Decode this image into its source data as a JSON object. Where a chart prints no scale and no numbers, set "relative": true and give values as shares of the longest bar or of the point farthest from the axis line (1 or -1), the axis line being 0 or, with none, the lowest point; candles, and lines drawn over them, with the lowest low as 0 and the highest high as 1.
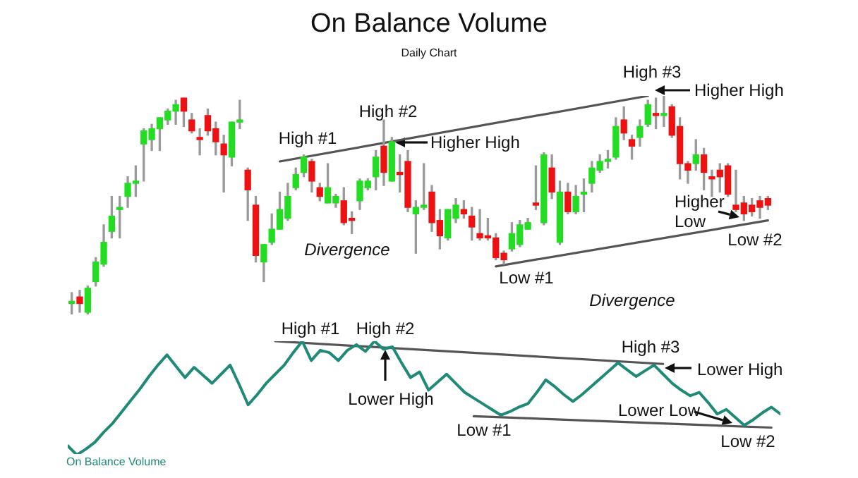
{
  "chart_data": [
    {
      "type": "candlestick",
      "title": "On Balance Volume",
      "subtitle": "Daily Chart",
      "relative": true,
      "marker": "none",
      "categories": [
        null,
        null,
        null,
        null,
        null,
        null,
        null,
        null,
        null,
        null,
        null,
        null,
        null,
        null,
        null,
        null,
        null,
        null,
        null,
        null,
        null,
        null,
        null,
        null,
        null,
        null,
        null,
        null,
        null,
        null,
        null,
        null,
        null,
        null,
        null,
        null,
        null,
        null,
        null,
        null,
        null,
        null,
        null,
        null,
        null,
        null,
        null,
        null,
        null,
        null,
        null,
        null,
        null,
        null,
        null,
        null,
        null,
        null,
        null,
        null,
        null,
        null,
        null,
        null,
        null,
        null,
        null,
        null,
        null,
        null,
        null,
        null,
        null,
        null,
        null,
        null,
        null,
        null,
        null,
        null,
        null,
        null,
        null,
        null,
        null,
        null,
        null,
        null
      ],
      "ohlc": [
        [
          0.05,
          0.1,
          0.0,
          0.06
        ],
        [
          0.08,
          0.11,
          0.01,
          0.05
        ],
        [
          0.01,
          0.13,
          0.0,
          0.12
        ],
        [
          0.15,
          0.26,
          0.13,
          0.24
        ],
        [
          0.23,
          0.41,
          0.22,
          0.33
        ],
        [
          0.38,
          0.54,
          0.35,
          0.45
        ],
        [
          0.48,
          0.54,
          0.35,
          0.49
        ],
        [
          0.54,
          0.63,
          0.49,
          0.6
        ],
        [
          0.6,
          0.68,
          0.54,
          0.61
        ],
        [
          0.78,
          0.85,
          0.61,
          0.84
        ],
        [
          0.8,
          0.87,
          0.75,
          0.85
        ],
        [
          0.85,
          0.9,
          0.75,
          0.9
        ],
        [
          0.89,
          0.94,
          0.87,
          0.93
        ],
        [
          0.93,
          0.98,
          0.87,
          0.96
        ],
        [
          0.99,
          0.99,
          0.86,
          0.93
        ],
        [
          0.89,
          0.92,
          0.83,
          0.84
        ],
        [
          0.81,
          0.85,
          0.73,
          0.8
        ],
        [
          0.91,
          0.94,
          0.82,
          0.84
        ],
        [
          0.85,
          0.88,
          0.73,
          0.79
        ],
        [
          0.78,
          0.82,
          0.56,
          0.73
        ],
        [
          0.72,
          0.88,
          0.68,
          0.88
        ],
        [
          0.88,
          0.98,
          0.85,
          0.89
        ],
        [
          0.66,
          0.67,
          0.43,
          0.57
        ],
        [
          0.5,
          0.54,
          0.24,
          0.27
        ],
        [
          0.24,
          0.32,
          0.15,
          0.32
        ],
        [
          0.33,
          0.46,
          0.32,
          0.39
        ],
        [
          0.39,
          0.56,
          0.39,
          0.48
        ],
        [
          0.44,
          0.6,
          0.43,
          0.54
        ],
        [
          0.58,
          0.67,
          0.57,
          0.64
        ],
        [
          0.65,
          0.73,
          0.63,
          0.72
        ],
        [
          0.7,
          0.71,
          0.56,
          0.61
        ],
        [
          0.58,
          0.6,
          0.52,
          0.54
        ],
        [
          0.51,
          0.69,
          0.51,
          0.58
        ],
        [
          0.51,
          0.55,
          0.49,
          0.54
        ],
        [
          0.52,
          0.58,
          0.41,
          0.42
        ],
        [
          0.44,
          0.47,
          0.37,
          0.43
        ],
        [
          0.52,
          0.62,
          0.48,
          0.61
        ],
        [
          0.58,
          0.62,
          0.57,
          0.61
        ],
        [
          0.63,
          0.75,
          0.57,
          0.72
        ],
        [
          0.77,
          0.89,
          0.59,
          0.65
        ],
        [
          0.61,
          0.81,
          0.61,
          0.79
        ],
        [
          0.65,
          0.73,
          0.56,
          0.64
        ],
        [
          0.7,
          0.75,
          0.47,
          0.49
        ],
        [
          0.46,
          0.52,
          0.28,
          0.49
        ],
        [
          0.49,
          0.69,
          0.48,
          0.5
        ],
        [
          0.56,
          0.59,
          0.38,
          0.42
        ],
        [
          0.43,
          0.48,
          0.3,
          0.36
        ],
        [
          0.35,
          0.48,
          0.34,
          0.48
        ],
        [
          0.44,
          0.53,
          0.42,
          0.5
        ],
        [
          0.48,
          0.52,
          0.44,
          0.46
        ],
        [
          0.45,
          0.49,
          0.34,
          0.4
        ],
        [
          0.37,
          0.48,
          0.34,
          0.35
        ],
        [
          0.36,
          0.44,
          0.34,
          0.35
        ],
        [
          0.35,
          0.37,
          0.25,
          0.26
        ],
        [
          0.28,
          0.29,
          0.23,
          0.25
        ],
        [
          0.3,
          0.42,
          0.29,
          0.37
        ],
        [
          0.32,
          0.43,
          0.31,
          0.41
        ],
        [
          0.39,
          0.44,
          0.39,
          0.42
        ],
        [
          0.51,
          0.68,
          0.48,
          0.5
        ],
        [
          0.42,
          0.74,
          0.41,
          0.73
        ],
        [
          0.67,
          0.73,
          0.53,
          0.56
        ],
        [
          0.33,
          0.61,
          0.32,
          0.56
        ],
        [
          0.56,
          0.6,
          0.46,
          0.47
        ],
        [
          0.47,
          0.59,
          0.46,
          0.54
        ],
        [
          0.55,
          0.62,
          0.47,
          0.56
        ],
        [
          0.6,
          0.7,
          0.56,
          0.67
        ],
        [
          0.66,
          0.73,
          0.65,
          0.7
        ],
        [
          0.7,
          0.75,
          0.67,
          0.71
        ],
        [
          0.72,
          0.9,
          0.71,
          0.86
        ],
        [
          0.89,
          0.95,
          0.8,
          0.83
        ],
        [
          0.8,
          0.82,
          0.71,
          0.77
        ],
        [
          0.81,
          0.89,
          0.77,
          0.86
        ],
        [
          0.87,
          0.98,
          0.86,
          0.96
        ],
        [
          0.92,
          0.99,
          0.85,
          0.91
        ],
        [
          0.91,
          1.0,
          0.86,
          0.92
        ],
        [
          0.95,
          0.96,
          0.81,
          0.82
        ],
        [
          0.86,
          0.9,
          0.62,
          0.69
        ],
        [
          0.69,
          0.7,
          0.6,
          0.66
        ],
        [
          0.69,
          0.8,
          0.66,
          0.73
        ],
        [
          0.73,
          0.76,
          0.57,
          0.65
        ],
        [
          0.63,
          0.66,
          0.54,
          0.62
        ],
        [
          0.66,
          0.69,
          0.56,
          0.63
        ],
        [
          0.68,
          0.69,
          0.54,
          0.55
        ],
        [
          0.5,
          0.66,
          0.47,
          0.48
        ],
        [
          0.51,
          0.54,
          0.43,
          0.46
        ],
        [
          0.5,
          0.53,
          0.45,
          0.47
        ],
        [
          0.52,
          0.54,
          0.44,
          0.49
        ],
        [
          0.53,
          0.54,
          0.48,
          0.5
        ]
      ],
      "colors": [
        "#22dd22",
        "#ee1111",
        "#22dd22",
        "#22dd22",
        "#22dd22",
        "#22dd22",
        "#22dd22",
        "#22dd22",
        "#22dd22",
        "#22dd22",
        "#22dd22",
        "#22dd22",
        "#22dd22",
        "#22dd22",
        "#ee1111",
        "#ee1111",
        "#ee1111",
        "#ee1111",
        "#ee1111",
        "#ee1111",
        "#22dd22",
        "#22dd22",
        "#ee1111",
        "#ee1111",
        "#22dd22",
        "#22dd22",
        "#22dd22",
        "#22dd22",
        "#22dd22",
        "#22dd22",
        "#ee1111",
        "#ee1111",
        "#22dd22",
        "#22dd22",
        "#ee1111",
        "#ee1111",
        "#22dd22",
        "#22dd22",
        "#22dd22",
        "#ee1111",
        "#22dd22",
        "#ee1111",
        "#ee1111",
        "#22dd22",
        "#22dd22",
        "#ee1111",
        "#ee1111",
        "#22dd22",
        "#22dd22",
        "#ee1111",
        "#ee1111",
        "#ee1111",
        "#ee1111",
        "#ee1111",
        "#ee1111",
        "#22dd22",
        "#22dd22",
        "#22dd22",
        "#ee1111",
        "#22dd22",
        "#ee1111",
        "#22dd22",
        "#ee1111",
        "#22dd22",
        "#22dd22",
        "#22dd22",
        "#22dd22",
        "#22dd22",
        "#22dd22",
        "#ee1111",
        "#ee1111",
        "#22dd22",
        "#22dd22",
        "#ee1111",
        "#22dd22",
        "#ee1111",
        "#ee1111",
        "#ee1111",
        "#22dd22",
        "#ee1111",
        "#ee1111",
        "#ee1111",
        "#ee1111",
        "#ee1111",
        "#ee1111",
        "#ee1111",
        "#ee1111",
        "#ee1111"
      ],
      "series": [
        {
          "type": "line",
          "color": "#555555",
          "values": [
            null,
            null,
            null,
            null,
            null,
            null,
            null,
            null,
            null,
            null,
            null,
            null,
            null,
            null,
            null,
            null,
            null,
            null,
            null,
            null,
            null,
            null,
            null,
            null,
            null,
            null,
            0.7,
            null,
            null,
            null,
            null,
            null,
            null,
            null,
            null,
            null,
            null,
            null,
            null,
            null,
            null,
            null,
            null,
            null,
            null,
            null,
            null,
            null,
            null,
            null,
            null,
            null,
            null,
            null,
            null,
            null,
            null,
            null,
            null,
            null,
            null,
            null,
            null,
            null,
            null,
            null,
            null,
            null,
            null,
            null,
            null,
            null,
            1.0,
            null,
            null,
            null,
            null,
            null,
            null,
            null,
            null,
            null,
            null,
            null,
            null,
            null,
            null,
            null
          ]
        },
        {
          "type": "line",
          "color": "#555555",
          "values": [
            null,
            null,
            null,
            null,
            null,
            null,
            null,
            null,
            null,
            null,
            null,
            null,
            null,
            null,
            null,
            null,
            null,
            null,
            null,
            null,
            null,
            null,
            null,
            null,
            null,
            null,
            null,
            null,
            null,
            null,
            null,
            null,
            null,
            null,
            null,
            null,
            null,
            null,
            null,
            null,
            null,
            null,
            null,
            null,
            null,
            null,
            null,
            null,
            null,
            null,
            null,
            null,
            null,
            0.22,
            null,
            null,
            null,
            null,
            null,
            null,
            null,
            null,
            null,
            null,
            null,
            null,
            null,
            null,
            null,
            null,
            null,
            null,
            null,
            null,
            null,
            null,
            null,
            null,
            null,
            null,
            null,
            null,
            null,
            null,
            null,
            null,
            null,
            0.43
          ]
        }
      ],
      "annotations": [
        "High #1",
        "High #2",
        "Higher High",
        "High #3",
        "Higher High",
        "Divergence",
        "Low #1",
        "Divergence",
        "Higher Low",
        "Low #2"
      ]
    },
    {
      "type": "line",
      "relative": true,
      "marker": "none",
      "categories": [
        null,
        null,
        null,
        null,
        null,
        null,
        null,
        null,
        null,
        null,
        null,
        null,
        null,
        null,
        null,
        null,
        null,
        null,
        null,
        null,
        null,
        null,
        null,
        null,
        null,
        null,
        null,
        null,
        null,
        null,
        null,
        null,
        null,
        null,
        null,
        null,
        null,
        null,
        null,
        null,
        null,
        null,
        null,
        null,
        null,
        null,
        null,
        null,
        null,
        null,
        null,
        null,
        null,
        null,
        null,
        null,
        null,
        null,
        null,
        null,
        null,
        null,
        null,
        null,
        null,
        null,
        null,
        null,
        null,
        null,
        null,
        null,
        null,
        null,
        null,
        null,
        null,
        null,
        null,
        null
      ],
      "series": [
        {
          "name": "On Balance Volume",
          "color": "#1f8a78",
          "values": [
            0.08,
            0,
            0.05,
            0.11,
            0.2,
            0.28,
            0.38,
            0.48,
            0.58,
            0.69,
            0.79,
            0.88,
            0.78,
            0.68,
            0.77,
            0.7,
            0.63,
            0.71,
            0.79,
            0.62,
            0.44,
            0.53,
            0.63,
            0.71,
            0.79,
            0.9,
            1.0,
            0.83,
            0.92,
            0.9,
            0.83,
            0.92,
            0.97,
            0.91,
            1.0,
            0.93,
            0.95,
            0.81,
            0.68,
            0.73,
            0.57,
            0.64,
            0.71,
            0.63,
            0.55,
            0.5,
            0.45,
            0.4,
            0.35,
            0.38,
            0.42,
            0.45,
            0.55,
            0.66,
            0.6,
            0.53,
            0.47,
            0.53,
            0.6,
            0.67,
            0.74,
            0.81,
            0.75,
            0.69,
            0.74,
            0.79,
            0.71,
            0.63,
            0.57,
            0.52,
            0.55,
            0.46,
            0.36,
            0.4,
            0.33,
            0.26,
            0.31,
            0.37,
            0.42,
            0.36
          ]
        },
        {
          "color": "#555555",
          "values": [
            null,
            null,
            null,
            null,
            null,
            null,
            null,
            null,
            null,
            null,
            null,
            null,
            null,
            null,
            null,
            null,
            null,
            null,
            null,
            null,
            null,
            null,
            null,
            1.0,
            null,
            null,
            null,
            null,
            null,
            null,
            null,
            null,
            null,
            null,
            null,
            null,
            null,
            null,
            null,
            null,
            null,
            null,
            null,
            null,
            null,
            null,
            null,
            null,
            null,
            null,
            null,
            null,
            null,
            null,
            null,
            null,
            null,
            null,
            null,
            null,
            null,
            null,
            null,
            null,
            null,
            null,
            0.8,
            null,
            null,
            null,
            null,
            null,
            null,
            null,
            null,
            null,
            null,
            null,
            null,
            null
          ]
        },
        {
          "color": "#555555",
          "values": [
            null,
            null,
            null,
            null,
            null,
            null,
            null,
            null,
            null,
            null,
            null,
            null,
            null,
            null,
            null,
            null,
            null,
            null,
            null,
            null,
            null,
            null,
            null,
            null,
            null,
            null,
            null,
            null,
            null,
            null,
            null,
            null,
            null,
            null,
            null,
            null,
            null,
            null,
            null,
            null,
            null,
            null,
            null,
            null,
            null,
            0.34,
            null,
            null,
            null,
            null,
            null,
            null,
            null,
            null,
            null,
            null,
            null,
            null,
            null,
            null,
            null,
            null,
            null,
            null,
            null,
            null,
            null,
            null,
            null,
            null,
            null,
            null,
            null,
            null,
            null,
            null,
            null,
            null,
            0.24,
            null
          ]
        }
      ],
      "annotations": [
        "High #1",
        "High #2",
        "Lower High",
        "High #3",
        "Lower High",
        "Low #1",
        "Lower Low",
        "Low #2"
      ]
    }
  ]
}
